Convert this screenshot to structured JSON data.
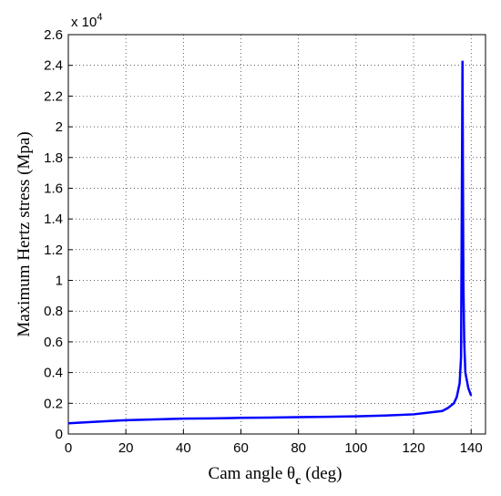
{
  "chart_data": {
    "type": "line",
    "ylabel": "Maximum Hertz stress (Mpa)",
    "xlabel": {
      "text": "Cam angle θ",
      "sub": "c",
      "suffix": "(deg)"
    },
    "y_multiplier": {
      "base": "x 10",
      "exponent": "4"
    },
    "x": [
      0,
      10,
      20,
      30,
      40,
      50,
      60,
      70,
      80,
      90,
      100,
      110,
      120,
      130,
      132,
      134,
      135,
      136,
      136.5,
      137,
      137.3,
      137.6,
      138,
      139,
      140
    ],
    "series": [
      {
        "color": "#0000ff",
        "values": [
          0.07,
          0.08,
          0.09,
          0.095,
          0.1,
          0.102,
          0.105,
          0.107,
          0.11,
          0.112,
          0.115,
          0.12,
          0.128,
          0.15,
          0.17,
          0.2,
          0.24,
          0.33,
          0.5,
          2.43,
          1.0,
          0.6,
          0.4,
          0.3,
          0.25
        ]
      }
    ],
    "xlim": [
      0,
      145
    ],
    "xticks": [
      0,
      20,
      40,
      60,
      80,
      100,
      120,
      140
    ],
    "ylim": [
      0,
      2.6
    ],
    "yticks": [
      0,
      0.2,
      0.4,
      0.6,
      0.8,
      1,
      1.2,
      1.4,
      1.6,
      1.8,
      2,
      2.2,
      2.4,
      2.6
    ],
    "grid": true
  }
}
